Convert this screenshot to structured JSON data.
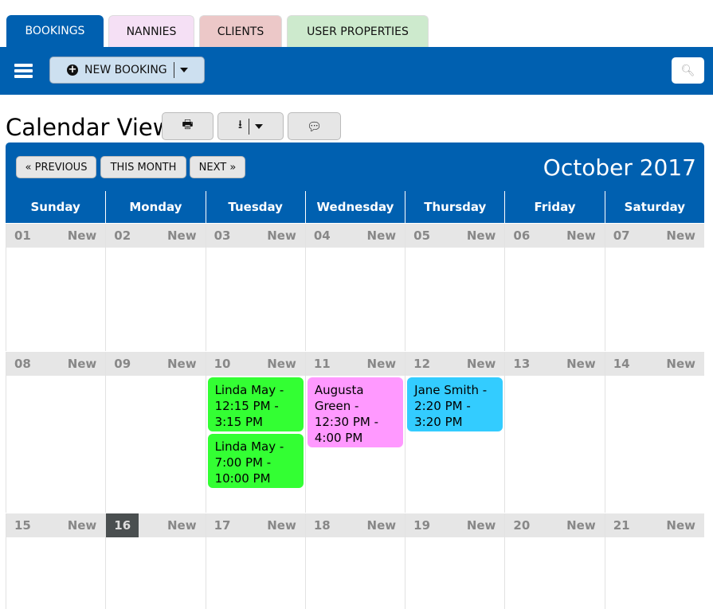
{
  "tabs": [
    {
      "label": "BOOKINGS",
      "color": "#0060b0",
      "text": "#ffffff",
      "width": 122
    },
    {
      "label": "NANNIES",
      "color": "#f5e0f5",
      "text": "#111111",
      "width": 108
    },
    {
      "label": "CLIENTS",
      "color": "#ecc8c8",
      "text": "#111111",
      "width": 104
    },
    {
      "label": "USER PROPERTIES",
      "color": "#cdeacd",
      "text": "#111111",
      "width": 178
    }
  ],
  "toolbar": {
    "menu_icon": "hamburger-icon",
    "new_booking": "NEW BOOKING",
    "search_icon": "search-icon"
  },
  "page": {
    "title": "Calendar View",
    "buttons": [
      "print-icon",
      "download-icon",
      "comment-icon"
    ]
  },
  "calendar": {
    "prev": "« PREVIOUS",
    "this_month": "THIS MONTH",
    "next": "NEXT »",
    "month": "October 2017",
    "days": [
      "Sunday",
      "Monday",
      "Tuesday",
      "Wednesday",
      "Thursday",
      "Friday",
      "Saturday"
    ],
    "new_label": "New",
    "today": "16",
    "weeks": [
      {
        "dates": [
          "01",
          "02",
          "03",
          "04",
          "05",
          "06",
          "07"
        ]
      },
      {
        "dates": [
          "08",
          "09",
          "10",
          "11",
          "12",
          "13",
          "14"
        ]
      },
      {
        "dates": [
          "15",
          "16",
          "17",
          "18",
          "19",
          "20",
          "21"
        ]
      }
    ],
    "events": [
      {
        "week": 1,
        "day": 2,
        "text": "Linda May - 12:15 PM - 3:15 PM",
        "color": "#33ff33"
      },
      {
        "week": 1,
        "day": 2,
        "text": "Linda May - 7:00 PM - 10:00 PM",
        "color": "#33ff33"
      },
      {
        "week": 1,
        "day": 3,
        "text": "Augusta Green - 12:30 PM - 4:00 PM",
        "color": "#ff99ff"
      },
      {
        "week": 1,
        "day": 4,
        "text": "Jane Smith - 2:20 PM - 3:20 PM",
        "color": "#33ccff"
      }
    ]
  }
}
